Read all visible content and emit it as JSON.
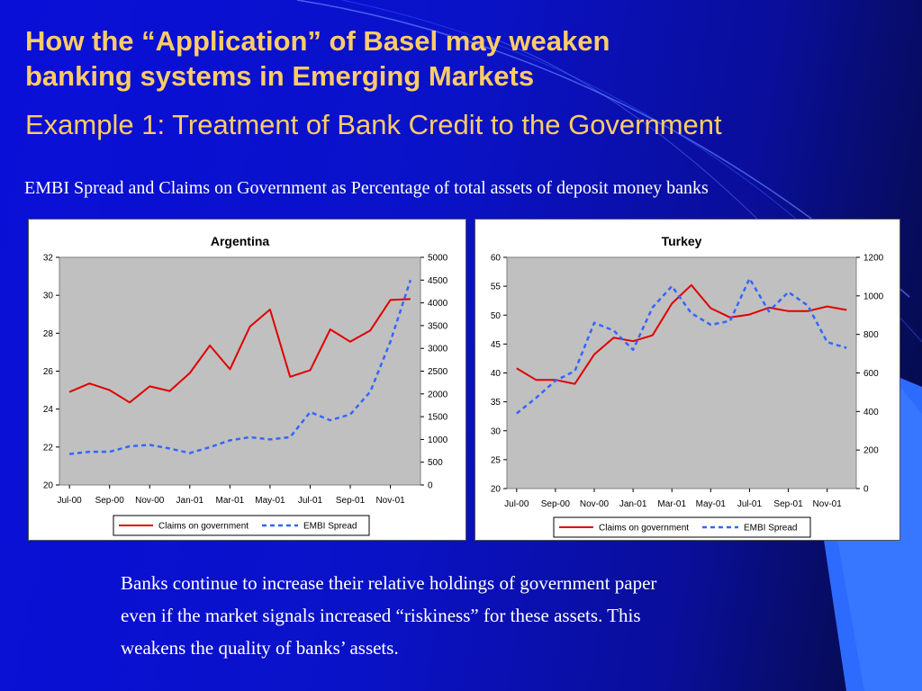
{
  "slide": {
    "title_line1": "How the “Application” of Basel may weaken",
    "title_line2": "banking systems in Emerging Markets",
    "title_line3": "Example 1: Treatment of Bank Credit to the Government",
    "subtitle": "EMBI Spread and Claims on Government as Percentage of total assets of deposit money banks",
    "body_lines": [
      "Banks continue to increase their relative holdings of government paper",
      "even if the market signals increased “riskiness” for these assets. This",
      "weakens the quality of banks’ assets."
    ]
  },
  "colors": {
    "claims_line": "#e00000",
    "embi_line": "#3366ff",
    "plot_bg": "#c0c0c0",
    "title_text": "#ffcc66"
  },
  "chart_data": [
    {
      "type": "line",
      "title": "Argentina",
      "x_tick_labels": [
        "Jul-00",
        "Sep-00",
        "Nov-00",
        "Jan-01",
        "Mar-01",
        "May-01",
        "Jul-01",
        "Sep-01",
        "Nov-01"
      ],
      "x": [
        "Jul-00",
        "Aug-00",
        "Sep-00",
        "Oct-00",
        "Nov-00",
        "Dec-00",
        "Jan-01",
        "Feb-01",
        "Mar-01",
        "Apr-01",
        "May-01",
        "Jun-01",
        "Jul-01",
        "Aug-01",
        "Sep-01",
        "Oct-01",
        "Nov-01",
        "Dec-01"
      ],
      "y_left_ticks": [
        "20",
        "22",
        "24",
        "26",
        "28",
        "30",
        "32"
      ],
      "y_left_lim": [
        20,
        32
      ],
      "y_right_ticks": [
        "0",
        "500",
        "1000",
        "1500",
        "2000",
        "2500",
        "3000",
        "3500",
        "4000",
        "4500",
        "5000"
      ],
      "y_right_lim": [
        0,
        5000
      ],
      "grid": false,
      "legend_position": "bottom",
      "series": [
        {
          "name": "Claims on government",
          "axis": "left",
          "style": "solid",
          "values": [
            24.9,
            25.35,
            25.0,
            24.35,
            25.2,
            24.95,
            25.9,
            27.35,
            26.1,
            28.35,
            29.25,
            25.7,
            26.05,
            28.2,
            27.55,
            28.15,
            29.75,
            29.8
          ]
        },
        {
          "name": "EMBI Spread",
          "axis": "right",
          "style": "dashed",
          "values": [
            680,
            730,
            730,
            850,
            880,
            800,
            700,
            830,
            980,
            1050,
            1000,
            1050,
            1600,
            1420,
            1550,
            2050,
            3150,
            4500
          ]
        }
      ]
    },
    {
      "type": "line",
      "title": "Turkey",
      "x_tick_labels": [
        "Jul-00",
        "Sep-00",
        "Nov-00",
        "Jan-01",
        "Mar-01",
        "May-01",
        "Jul-01",
        "Sep-01",
        "Nov-01"
      ],
      "x": [
        "Jul-00",
        "Aug-00",
        "Sep-00",
        "Oct-00",
        "Nov-00",
        "Dec-00",
        "Jan-01",
        "Feb-01",
        "Mar-01",
        "Apr-01",
        "May-01",
        "Jun-01",
        "Jul-01",
        "Aug-01",
        "Sep-01",
        "Oct-01",
        "Nov-01",
        "Dec-01"
      ],
      "y_left_ticks": [
        "20",
        "25",
        "30",
        "35",
        "40",
        "45",
        "50",
        "55",
        "60"
      ],
      "y_left_lim": [
        20,
        60
      ],
      "y_right_ticks": [
        "0",
        "200",
        "400",
        "600",
        "800",
        "1000",
        "1200"
      ],
      "y_right_lim": [
        0,
        1200
      ],
      "grid": false,
      "legend_position": "bottom",
      "series": [
        {
          "name": "Claims on government",
          "axis": "left",
          "style": "solid",
          "values": [
            40.8,
            38.8,
            38.8,
            38.1,
            43.2,
            46.1,
            45.5,
            46.5,
            52.0,
            55.2,
            51.2,
            49.6,
            50.1,
            51.3,
            50.7,
            50.7,
            51.5,
            50.9
          ]
        },
        {
          "name": "EMBI Spread",
          "axis": "right",
          "style": "dashed",
          "values": [
            390,
            470,
            560,
            610,
            860,
            820,
            720,
            940,
            1050,
            910,
            850,
            870,
            1090,
            920,
            1020,
            950,
            760,
            730
          ]
        }
      ]
    }
  ]
}
